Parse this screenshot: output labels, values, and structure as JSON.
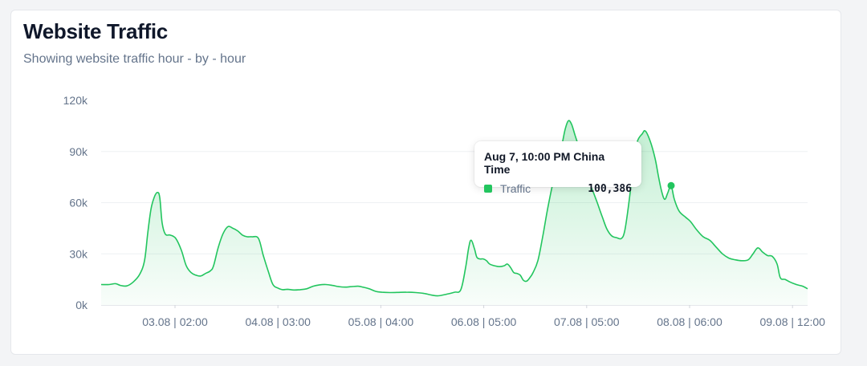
{
  "card": {
    "title": "Website Traffic",
    "subtitle": "Showing website traffic hour - by - hour"
  },
  "tooltip": {
    "title": "Aug 7, 10:00 PM China Time",
    "series_label": "Traffic",
    "value": "100,386"
  },
  "colors": {
    "line": "#22c55e",
    "fill": "#22c55e",
    "grid": "#eef0f3",
    "tick_text": "#64748b"
  },
  "chart_data": {
    "type": "area",
    "title": "Website Traffic",
    "subtitle": "Showing website traffic hour - by - hour",
    "xlabel": "",
    "ylabel": "",
    "ylim": [
      0,
      120000
    ],
    "y_ticks": [
      "0k",
      "30k",
      "60k",
      "90k",
      "120k"
    ],
    "x_ticks": [
      "03.08 | 02:00",
      "04.08 | 03:00",
      "05.08 | 04:00",
      "06.08 | 05:00",
      "07.08 | 05:00",
      "08.08 | 06:00",
      "09.08 | 12:00"
    ],
    "grid": true,
    "series": [
      {
        "name": "Traffic",
        "points": [
          [
            0,
            12000
          ],
          [
            10,
            12000
          ],
          [
            18,
            12500
          ],
          [
            24,
            11500
          ],
          [
            32,
            11200
          ],
          [
            40,
            13500
          ],
          [
            48,
            18000
          ],
          [
            54,
            26000
          ],
          [
            58,
            42000
          ],
          [
            62,
            56000
          ],
          [
            66,
            63000
          ],
          [
            70,
            66000
          ],
          [
            73,
            63000
          ],
          [
            76,
            48000
          ],
          [
            80,
            41500
          ],
          [
            86,
            41000
          ],
          [
            93,
            39000
          ],
          [
            100,
            32000
          ],
          [
            106,
            23000
          ],
          [
            112,
            19000
          ],
          [
            118,
            17500
          ],
          [
            124,
            17000
          ],
          [
            130,
            18500
          ],
          [
            136,
            20000
          ],
          [
            140,
            23000
          ],
          [
            146,
            34000
          ],
          [
            152,
            42000
          ],
          [
            158,
            46000
          ],
          [
            164,
            45000
          ],
          [
            170,
            43500
          ],
          [
            176,
            41000
          ],
          [
            182,
            40000
          ],
          [
            188,
            40000
          ],
          [
            196,
            39000
          ],
          [
            202,
            29000
          ],
          [
            208,
            20000
          ],
          [
            214,
            12000
          ],
          [
            220,
            10000
          ],
          [
            226,
            9000
          ],
          [
            232,
            9200
          ],
          [
            240,
            8800
          ],
          [
            248,
            9000
          ],
          [
            256,
            9500
          ],
          [
            264,
            11000
          ],
          [
            272,
            11800
          ],
          [
            280,
            12000
          ],
          [
            288,
            11500
          ],
          [
            296,
            10800
          ],
          [
            304,
            10500
          ],
          [
            312,
            10800
          ],
          [
            320,
            11000
          ],
          [
            326,
            10500
          ],
          [
            334,
            9500
          ],
          [
            342,
            8000
          ],
          [
            350,
            7500
          ],
          [
            360,
            7300
          ],
          [
            370,
            7400
          ],
          [
            380,
            7500
          ],
          [
            392,
            7300
          ],
          [
            402,
            6800
          ],
          [
            412,
            5800
          ],
          [
            420,
            5400
          ],
          [
            430,
            6300
          ],
          [
            440,
            7500
          ],
          [
            448,
            9000
          ],
          [
            454,
            22000
          ],
          [
            458,
            34000
          ],
          [
            461,
            38000
          ],
          [
            465,
            33000
          ],
          [
            468,
            28000
          ],
          [
            472,
            27000
          ],
          [
            476,
            27000
          ],
          [
            480,
            26000
          ],
          [
            484,
            24000
          ],
          [
            490,
            23000
          ],
          [
            496,
            22500
          ],
          [
            502,
            23000
          ],
          [
            506,
            24000
          ],
          [
            510,
            22000
          ],
          [
            514,
            19000
          ],
          [
            518,
            18500
          ],
          [
            522,
            17500
          ],
          [
            526,
            14500
          ],
          [
            530,
            14000
          ],
          [
            534,
            16000
          ],
          [
            538,
            19000
          ],
          [
            544,
            26000
          ],
          [
            550,
            40000
          ],
          [
            556,
            56000
          ],
          [
            562,
            70000
          ],
          [
            568,
            82000
          ],
          [
            574,
            94000
          ],
          [
            578,
            103000
          ],
          [
            582,
            108000
          ],
          [
            586,
            106000
          ],
          [
            590,
            100000
          ],
          [
            595,
            93000
          ],
          [
            599,
            89000
          ],
          [
            603,
            86500
          ],
          [
            606,
            78000
          ],
          [
            610,
            70000
          ],
          [
            614,
            65000
          ],
          [
            618,
            60000
          ],
          [
            624,
            52000
          ],
          [
            630,
            44500
          ],
          [
            636,
            40500
          ],
          [
            642,
            39500
          ],
          [
            648,
            39000
          ],
          [
            652,
            43000
          ],
          [
            656,
            55000
          ],
          [
            660,
            70000
          ],
          [
            664,
            86000
          ],
          [
            668,
            96000
          ],
          [
            674,
            100386
          ],
          [
            678,
            102000
          ],
          [
            684,
            96000
          ],
          [
            690,
            86000
          ],
          [
            694,
            76000
          ],
          [
            698,
            67000
          ],
          [
            702,
            62000
          ],
          [
            706,
            66000
          ],
          [
            710,
            70000
          ],
          [
            714,
            62000
          ],
          [
            720,
            55000
          ],
          [
            728,
            51500
          ],
          [
            734,
            49000
          ],
          [
            742,
            44000
          ],
          [
            750,
            40000
          ],
          [
            758,
            38000
          ],
          [
            766,
            34000
          ],
          [
            774,
            30000
          ],
          [
            782,
            27500
          ],
          [
            790,
            26500
          ],
          [
            798,
            26000
          ],
          [
            806,
            26500
          ],
          [
            812,
            30000
          ],
          [
            818,
            33500
          ],
          [
            824,
            31000
          ],
          [
            830,
            29000
          ],
          [
            836,
            28500
          ],
          [
            842,
            24000
          ],
          [
            846,
            16000
          ],
          [
            852,
            15000
          ],
          [
            858,
            13500
          ],
          [
            866,
            12000
          ],
          [
            874,
            11000
          ],
          [
            880,
            9500
          ]
        ]
      }
    ],
    "highlight": {
      "series": "Traffic",
      "index": 121
    }
  }
}
